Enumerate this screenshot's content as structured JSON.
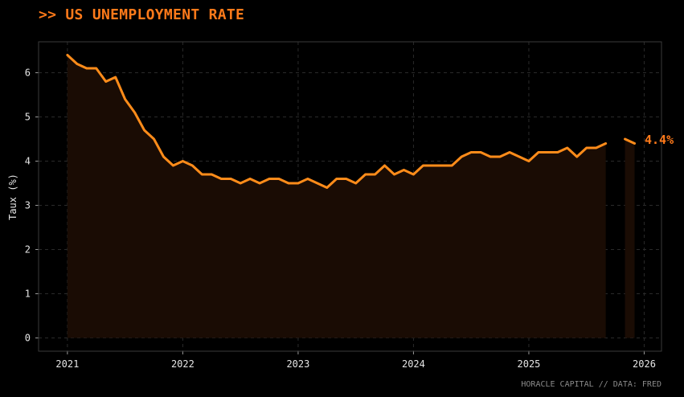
{
  "header": {
    "title": ">> US UNEMPLOYMENT RATE"
  },
  "footer": {
    "source": "HORACLE CAPITAL // DATA: FRED"
  },
  "colors": {
    "background": "#000000",
    "line": "#ff8c1a",
    "fill": "#1a0c04",
    "last_label": "#ff7a1a",
    "grid": "#2a2a2a",
    "axis_text": "#e6e6e6",
    "frame": "#3a3a3a"
  },
  "chart_data": {
    "type": "line",
    "title": ">> US UNEMPLOYMENT RATE",
    "xlabel": "",
    "ylabel": "Taux (%)",
    "xlim": [
      2020.75,
      2026.15
    ],
    "ylim": [
      -0.3,
      6.7
    ],
    "xticks": [
      2021,
      2022,
      2023,
      2024,
      2025,
      2026
    ],
    "xtick_labels": [
      "2021",
      "2022",
      "2023",
      "2024",
      "2025",
      "2026"
    ],
    "yticks": [
      0,
      1,
      2,
      3,
      4,
      5,
      6
    ],
    "grid": true,
    "fill_under_line": true,
    "series": [
      {
        "segment": 1,
        "x": [
          "2021-01",
          "2021-02",
          "2021-03",
          "2021-04",
          "2021-05",
          "2021-06",
          "2021-07",
          "2021-08",
          "2021-09",
          "2021-10",
          "2021-11",
          "2021-12",
          "2022-01",
          "2022-02",
          "2022-03",
          "2022-04",
          "2022-05",
          "2022-06",
          "2022-07",
          "2022-08",
          "2022-09",
          "2022-10",
          "2022-11",
          "2022-12",
          "2023-01",
          "2023-02",
          "2023-03",
          "2023-04",
          "2023-05",
          "2023-06",
          "2023-07",
          "2023-08",
          "2023-09",
          "2023-10",
          "2023-11",
          "2023-12",
          "2024-01",
          "2024-02",
          "2024-03",
          "2024-04",
          "2024-05",
          "2024-06",
          "2024-07",
          "2024-08",
          "2024-09",
          "2024-10",
          "2024-11",
          "2024-12",
          "2025-01",
          "2025-02",
          "2025-03",
          "2025-04",
          "2025-05",
          "2025-06",
          "2025-07",
          "2025-08",
          "2025-09"
        ],
        "values": [
          6.4,
          6.2,
          6.1,
          6.1,
          5.8,
          5.9,
          5.4,
          5.1,
          4.7,
          4.5,
          4.1,
          3.9,
          4.0,
          3.9,
          3.7,
          3.7,
          3.6,
          3.6,
          3.5,
          3.6,
          3.5,
          3.6,
          3.6,
          3.5,
          3.5,
          3.6,
          3.5,
          3.4,
          3.6,
          3.6,
          3.5,
          3.7,
          3.7,
          3.9,
          3.7,
          3.8,
          3.7,
          3.9,
          3.9,
          3.9,
          3.9,
          4.1,
          4.2,
          4.2,
          4.1,
          4.1,
          4.2,
          4.1,
          4.0,
          4.2,
          4.2,
          4.2,
          4.3,
          4.1,
          4.3,
          4.3,
          4.4
        ]
      },
      {
        "segment": 2,
        "x": [
          "2025-11",
          "2025-12"
        ],
        "values": [
          4.5,
          4.4
        ]
      }
    ],
    "last_value_label": "4.4%"
  }
}
